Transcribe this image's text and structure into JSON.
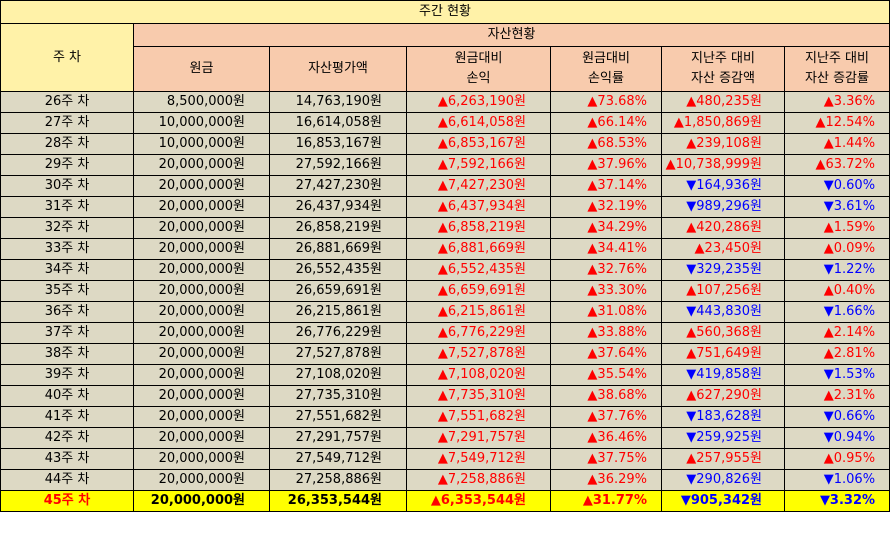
{
  "title": "주간 현황",
  "headers": {
    "week": "주 차",
    "group": "자산현황",
    "principal": "원금",
    "valuation": "자산평가액",
    "profit_l1": "원금대비",
    "profit_l2": "손익",
    "rate_l1": "원금대비",
    "rate_l2": "손익률",
    "wchg_l1": "지난주 대비",
    "wchg_l2": "자산 증감액",
    "wrate_l1": "지난주 대비",
    "wrate_l2": "자산 증감률"
  },
  "colors": {
    "up": "#ff0000",
    "down": "#0000ff",
    "title_bg": "#fff2a8",
    "head_bg": "#f8cbad",
    "row_bg": "#ddd9c4",
    "highlight_bg": "#ffff00"
  },
  "rows": [
    {
      "week": "26주 차",
      "principal": "8,500,000원",
      "valuation": "14,763,190원",
      "profit": "▲6,263,190원",
      "rate": "▲73.68%",
      "wchg": "▲480,235원",
      "wchg_dir": "up",
      "wrate": "▲3.36%",
      "wrate_dir": "up"
    },
    {
      "week": "27주 차",
      "principal": "10,000,000원",
      "valuation": "16,614,058원",
      "profit": "▲6,614,058원",
      "rate": "▲66.14%",
      "wchg": "▲1,850,869원",
      "wchg_dir": "up",
      "wrate": "▲12.54%",
      "wrate_dir": "up"
    },
    {
      "week": "28주 차",
      "principal": "10,000,000원",
      "valuation": "16,853,167원",
      "profit": "▲6,853,167원",
      "rate": "▲68.53%",
      "wchg": "▲239,108원",
      "wchg_dir": "up",
      "wrate": "▲1.44%",
      "wrate_dir": "up"
    },
    {
      "week": "29주 차",
      "principal": "20,000,000원",
      "valuation": "27,592,166원",
      "profit": "▲7,592,166원",
      "rate": "▲37.96%",
      "wchg": "▲10,738,999원",
      "wchg_dir": "up",
      "wrate": "▲63.72%",
      "wrate_dir": "up"
    },
    {
      "week": "30주 차",
      "principal": "20,000,000원",
      "valuation": "27,427,230원",
      "profit": "▲7,427,230원",
      "rate": "▲37.14%",
      "wchg": "▼164,936원",
      "wchg_dir": "down",
      "wrate": "▼0.60%",
      "wrate_dir": "down"
    },
    {
      "week": "31주 차",
      "principal": "20,000,000원",
      "valuation": "26,437,934원",
      "profit": "▲6,437,934원",
      "rate": "▲32.19%",
      "wchg": "▼989,296원",
      "wchg_dir": "down",
      "wrate": "▼3.61%",
      "wrate_dir": "down"
    },
    {
      "week": "32주 차",
      "principal": "20,000,000원",
      "valuation": "26,858,219원",
      "profit": "▲6,858,219원",
      "rate": "▲34.29%",
      "wchg": "▲420,286원",
      "wchg_dir": "up",
      "wrate": "▲1.59%",
      "wrate_dir": "up"
    },
    {
      "week": "33주 차",
      "principal": "20,000,000원",
      "valuation": "26,881,669원",
      "profit": "▲6,881,669원",
      "rate": "▲34.41%",
      "wchg": "▲23,450원",
      "wchg_dir": "up",
      "wrate": "▲0.09%",
      "wrate_dir": "up"
    },
    {
      "week": "34주 차",
      "principal": "20,000,000원",
      "valuation": "26,552,435원",
      "profit": "▲6,552,435원",
      "rate": "▲32.76%",
      "wchg": "▼329,235원",
      "wchg_dir": "down",
      "wrate": "▼1.22%",
      "wrate_dir": "down"
    },
    {
      "week": "35주 차",
      "principal": "20,000,000원",
      "valuation": "26,659,691원",
      "profit": "▲6,659,691원",
      "rate": "▲33.30%",
      "wchg": "▲107,256원",
      "wchg_dir": "up",
      "wrate": "▲0.40%",
      "wrate_dir": "up"
    },
    {
      "week": "36주 차",
      "principal": "20,000,000원",
      "valuation": "26,215,861원",
      "profit": "▲6,215,861원",
      "rate": "▲31.08%",
      "wchg": "▼443,830원",
      "wchg_dir": "down",
      "wrate": "▼1.66%",
      "wrate_dir": "down"
    },
    {
      "week": "37주 차",
      "principal": "20,000,000원",
      "valuation": "26,776,229원",
      "profit": "▲6,776,229원",
      "rate": "▲33.88%",
      "wchg": "▲560,368원",
      "wchg_dir": "up",
      "wrate": "▲2.14%",
      "wrate_dir": "up"
    },
    {
      "week": "38주 차",
      "principal": "20,000,000원",
      "valuation": "27,527,878원",
      "profit": "▲7,527,878원",
      "rate": "▲37.64%",
      "wchg": "▲751,649원",
      "wchg_dir": "up",
      "wrate": "▲2.81%",
      "wrate_dir": "up"
    },
    {
      "week": "39주 차",
      "principal": "20,000,000원",
      "valuation": "27,108,020원",
      "profit": "▲7,108,020원",
      "rate": "▲35.54%",
      "wchg": "▼419,858원",
      "wchg_dir": "down",
      "wrate": "▼1.53%",
      "wrate_dir": "down"
    },
    {
      "week": "40주 차",
      "principal": "20,000,000원",
      "valuation": "27,735,310원",
      "profit": "▲7,735,310원",
      "rate": "▲38.68%",
      "wchg": "▲627,290원",
      "wchg_dir": "up",
      "wrate": "▲2.31%",
      "wrate_dir": "up"
    },
    {
      "week": "41주 차",
      "principal": "20,000,000원",
      "valuation": "27,551,682원",
      "profit": "▲7,551,682원",
      "rate": "▲37.76%",
      "wchg": "▼183,628원",
      "wchg_dir": "down",
      "wrate": "▼0.66%",
      "wrate_dir": "down"
    },
    {
      "week": "42주 차",
      "principal": "20,000,000원",
      "valuation": "27,291,757원",
      "profit": "▲7,291,757원",
      "rate": "▲36.46%",
      "wchg": "▼259,925원",
      "wchg_dir": "down",
      "wrate": "▼0.94%",
      "wrate_dir": "down"
    },
    {
      "week": "43주 차",
      "principal": "20,000,000원",
      "valuation": "27,549,712원",
      "profit": "▲7,549,712원",
      "rate": "▲37.75%",
      "wchg": "▲257,955원",
      "wchg_dir": "up",
      "wrate": "▲0.95%",
      "wrate_dir": "up"
    },
    {
      "week": "44주 차",
      "principal": "20,000,000원",
      "valuation": "27,258,886원",
      "profit": "▲7,258,886원",
      "rate": "▲36.29%",
      "wchg": "▼290,826원",
      "wchg_dir": "down",
      "wrate": "▼1.06%",
      "wrate_dir": "down"
    },
    {
      "week": "45주 차",
      "principal": "20,000,000원",
      "valuation": "26,353,544원",
      "profit": "▲6,353,544원",
      "rate": "▲31.77%",
      "wchg": "▼905,342원",
      "wchg_dir": "down",
      "wrate": "▼3.32%",
      "wrate_dir": "down"
    }
  ]
}
